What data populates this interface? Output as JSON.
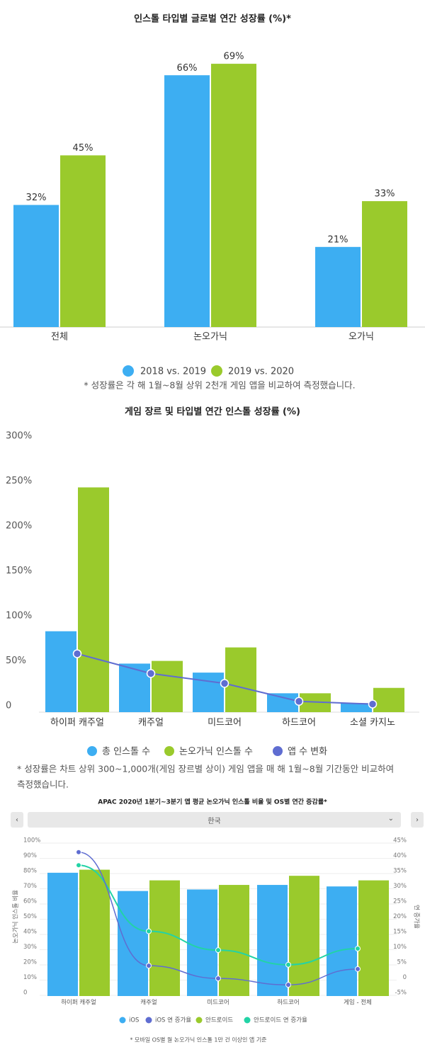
{
  "colors": {
    "blue": "#3daef2",
    "green": "#9aca2c",
    "purple": "#5f6dd1",
    "teal": "#22d3a6"
  },
  "chart_data": [
    {
      "type": "bar",
      "title": "인스톨 타입별 글로벌 연간 성장률 (%)*",
      "categories": [
        "전체",
        "논오가닉",
        "오가닉"
      ],
      "series": [
        {
          "name": "2018 vs. 2019",
          "values": [
            32,
            66,
            21
          ],
          "labels": [
            "32%",
            "66%",
            "21%"
          ]
        },
        {
          "name": "2019 vs. 2020",
          "values": [
            45,
            69,
            33
          ],
          "labels": [
            "45%",
            "69%",
            "33%"
          ]
        }
      ],
      "ylim": [
        0,
        70
      ],
      "legend": "bottom",
      "note": "* 성장률은 각 해 1월~8월 상위 2천개 게임 앱을 비교하여 측정했습니다."
    },
    {
      "type": "bar",
      "title": "게임 장르 및 타입별 연간 인스톨 성장률 (%)",
      "categories": [
        "하이퍼 캐주얼",
        "캐주얼",
        "미드코어",
        "하드코어",
        "소셜 카지노"
      ],
      "yticks": [
        "0",
        "50%",
        "100%",
        "150%",
        "200%",
        "250%",
        "300%"
      ],
      "ylim": [
        0,
        300
      ],
      "series": [
        {
          "name": "총 인스톨 수",
          "type": "bar",
          "values": [
            90,
            54,
            44,
            21,
            10
          ]
        },
        {
          "name": "논오가닉 인스톨 수",
          "type": "bar",
          "values": [
            250,
            57,
            72,
            21,
            27
          ]
        },
        {
          "name": "앱 수 변화",
          "type": "line",
          "values": [
            65,
            43,
            32,
            12,
            9
          ]
        }
      ],
      "legend": "bottom",
      "note_lines": [
        "* 성장률은 차트 상위 300~1,000개(게임 장르별 상이) 게임 앱을 매 해 1월~8월 기간동안 비교하여",
        "측정했습니다."
      ]
    },
    {
      "type": "bar",
      "title": "APAC 2020년 1분기~3분기 앱 평균 논오가닉 인스톨 비율 및 OS별 연간 증감률*",
      "selector": {
        "value": "한국",
        "prev": "‹",
        "next": "›",
        "chevron": "⌄"
      },
      "categories": [
        "하이퍼 캐주얼",
        "캐주얼",
        "미드코어",
        "하드코어",
        "게임 - 전체"
      ],
      "ylabel": "논오가닉 인스톨 비율",
      "ylabel_right": "연 증가율",
      "yticks": [
        "0",
        "10%",
        "20%",
        "30%",
        "40%",
        "50%",
        "60%",
        "70%",
        "80%",
        "90%",
        "100%"
      ],
      "yticks_right": [
        "-5%",
        "0",
        "5%",
        "10%",
        "15%",
        "20%",
        "25%",
        "30%",
        "35%",
        "40%",
        "45%"
      ],
      "ylim": [
        0,
        100
      ],
      "ylim_right": [
        -5,
        45
      ],
      "series": [
        {
          "name": "iOS",
          "type": "bar",
          "axis": "left",
          "values": [
            81,
            69,
            70,
            73,
            72
          ]
        },
        {
          "name": "iOS 연 증가율",
          "type": "line",
          "axis": "right",
          "values": [
            41,
            3.7,
            -0.5,
            -2.6,
            2.6
          ]
        },
        {
          "name": "안드로이드",
          "type": "bar",
          "axis": "left",
          "values": [
            83,
            76,
            73,
            79,
            76
          ]
        },
        {
          "name": "안드로이드 연 증가율",
          "type": "line",
          "axis": "right",
          "values": [
            36.7,
            15,
            8.8,
            4,
            9.3
          ]
        }
      ],
      "legend": "bottom",
      "note": "* 모바일 OS별 월 논오가닉 인스톨 1만 건 이상인 앱 기준"
    }
  ]
}
